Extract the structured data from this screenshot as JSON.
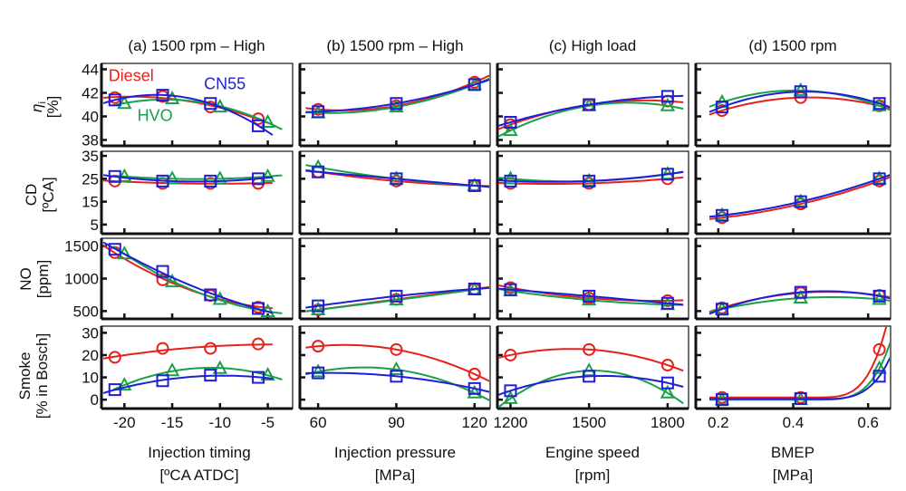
{
  "figure": {
    "legend": [
      {
        "name": "Diesel",
        "color": "#e8201c",
        "marker": "circle"
      },
      {
        "name": "CN55",
        "color": "#1f1fd6",
        "marker": "square"
      },
      {
        "name": "HVO",
        "color": "#1aa04a",
        "marker": "triangle"
      }
    ]
  },
  "chart_data": {
    "type": "line",
    "layout": "4x4 small multiples",
    "columns": [
      {
        "title": "(a) 1500 rpm – High",
        "xlabel": "Injection timing",
        "xunit": "[ºCA ATDC]",
        "xticks": [
          -20,
          -15,
          -10,
          -5
        ],
        "xticklabels": [
          "-20",
          "-15",
          "-10",
          "-5"
        ],
        "xlim": [
          -22.4,
          -2.4
        ]
      },
      {
        "title": "(b) 1500 rpm – High",
        "xlabel": "Injection pressure",
        "xunit": "[MPa]",
        "xticks": [
          60,
          90,
          120
        ],
        "xticklabels": [
          "60",
          "90",
          "120"
        ],
        "xlim": [
          53,
          126
        ]
      },
      {
        "title": "(c) High load",
        "xlabel": "Engine speed",
        "xunit": "[rpm]",
        "xticks": [
          1200,
          1500,
          1800
        ],
        "xticklabels": [
          "1200",
          "1500",
          "1800"
        ],
        "xlim": [
          1150,
          1880
        ]
      },
      {
        "title": "(d) 1500 rpm",
        "xlabel": "BMEP",
        "xunit": "[MPa]",
        "xticks": [
          0.2,
          0.4,
          0.6
        ],
        "xticklabels": [
          "0.2",
          "0.4",
          "0.6"
        ],
        "xlim": [
          0.14,
          0.66
        ]
      }
    ],
    "rows": [
      {
        "ylabel": "ηi",
        "ylabel_main": "η",
        "ylabel_sub": "i",
        "yunit": "[%]",
        "yticks": [
          38,
          40,
          42,
          44
        ],
        "yticklabels": [
          "38",
          "40",
          "42",
          "44"
        ],
        "ylim": [
          37.5,
          44.5
        ]
      },
      {
        "ylabel": "CD",
        "yunit": "[ºCA]",
        "yticks": [
          5,
          15,
          25,
          35
        ],
        "yticklabels": [
          "5",
          "15",
          "25",
          "35"
        ],
        "ylim": [
          1,
          37
        ]
      },
      {
        "ylabel": "NO",
        "yunit": "[ppm]",
        "yticks": [
          500,
          1000,
          1500
        ],
        "yticklabels": [
          "500",
          "1000",
          "1500"
        ],
        "ylim": [
          380,
          1620
        ]
      },
      {
        "ylabel": "Smoke",
        "yunit": "[% in Bosch]",
        "yticks": [
          0,
          10,
          20,
          30
        ],
        "yticklabels": [
          "0",
          "10",
          "20",
          "30"
        ],
        "ylim": [
          -4,
          33
        ]
      }
    ],
    "panels": [
      {
        "row": 0,
        "col": 0,
        "series": [
          {
            "name": "Diesel",
            "x": [
              -21,
              -16,
              -11,
              -6
            ],
            "y": [
              41.6,
              41.7,
              40.8,
              39.8
            ]
          },
          {
            "name": "CN55",
            "x": [
              -21,
              -16,
              -11,
              -6
            ],
            "y": [
              41.4,
              41.8,
              41.1,
              39.2
            ]
          },
          {
            "name": "HVO",
            "x": [
              -20,
              -15,
              -10,
              -5
            ],
            "y": [
              41.1,
              41.5,
              40.8,
              39.5
            ]
          }
        ]
      },
      {
        "row": 0,
        "col": 1,
        "series": [
          {
            "name": "Diesel",
            "x": [
              60,
              90,
              120
            ],
            "y": [
              40.6,
              40.9,
              42.9
            ]
          },
          {
            "name": "CN55",
            "x": [
              60,
              90,
              120
            ],
            "y": [
              40.4,
              41.1,
              42.7
            ]
          },
          {
            "name": "HVO",
            "x": [
              60,
              90,
              120
            ],
            "y": [
              40.3,
              40.8,
              42.7
            ]
          }
        ]
      },
      {
        "row": 0,
        "col": 2,
        "series": [
          {
            "name": "Diesel",
            "x": [
              1200,
              1500,
              1800
            ],
            "y": [
              39.3,
              41.0,
              41.3
            ]
          },
          {
            "name": "CN55",
            "x": [
              1200,
              1500,
              1800
            ],
            "y": [
              39.5,
              41.0,
              41.7
            ]
          },
          {
            "name": "HVO",
            "x": [
              1200,
              1500,
              1800
            ],
            "y": [
              38.8,
              40.9,
              40.9
            ]
          }
        ]
      },
      {
        "row": 0,
        "col": 3,
        "series": [
          {
            "name": "Diesel",
            "x": [
              0.21,
              0.42,
              0.63
            ],
            "y": [
              40.5,
              41.6,
              40.9
            ]
          },
          {
            "name": "CN55",
            "x": [
              0.21,
              0.42,
              0.63
            ],
            "y": [
              40.8,
              42.1,
              41.1
            ]
          },
          {
            "name": "HVO",
            "x": [
              0.21,
              0.42,
              0.63
            ],
            "y": [
              41.2,
              42.2,
              40.9
            ]
          }
        ]
      },
      {
        "row": 1,
        "col": 0,
        "series": [
          {
            "name": "Diesel",
            "x": [
              -21,
              -16,
              -11,
              -6
            ],
            "y": [
              24,
              23,
              23,
              23
            ]
          },
          {
            "name": "CN55",
            "x": [
              -21,
              -16,
              -11,
              -6
            ],
            "y": [
              26,
              24,
              24,
              25
            ]
          },
          {
            "name": "HVO",
            "x": [
              -20,
              -15,
              -10,
              -5
            ],
            "y": [
              26,
              25,
              25,
              26
            ]
          }
        ]
      },
      {
        "row": 1,
        "col": 1,
        "series": [
          {
            "name": "Diesel",
            "x": [
              60,
              90,
              120
            ],
            "y": [
              28,
              24,
              22
            ]
          },
          {
            "name": "CN55",
            "x": [
              60,
              90,
              120
            ],
            "y": [
              28,
              25,
              22
            ]
          },
          {
            "name": "HVO",
            "x": [
              60,
              90,
              120
            ],
            "y": [
              30,
              25,
              22
            ]
          }
        ]
      },
      {
        "row": 1,
        "col": 2,
        "series": [
          {
            "name": "Diesel",
            "x": [
              1200,
              1500,
              1800
            ],
            "y": [
              23,
              23,
              25
            ]
          },
          {
            "name": "CN55",
            "x": [
              1200,
              1500,
              1800
            ],
            "y": [
              24,
              24,
              27
            ]
          },
          {
            "name": "HVO",
            "x": [
              1200,
              1500,
              1800
            ],
            "y": [
              25,
              24,
              27
            ]
          }
        ]
      },
      {
        "row": 1,
        "col": 3,
        "series": [
          {
            "name": "Diesel",
            "x": [
              0.21,
              0.42,
              0.63
            ],
            "y": [
              8,
              14,
              24
            ]
          },
          {
            "name": "CN55",
            "x": [
              0.21,
              0.42,
              0.63
            ],
            "y": [
              9,
              15,
              25
            ]
          },
          {
            "name": "HVO",
            "x": [
              0.21,
              0.42,
              0.63
            ],
            "y": [
              9,
              15,
              25
            ]
          }
        ]
      },
      {
        "row": 2,
        "col": 0,
        "series": [
          {
            "name": "Diesel",
            "x": [
              -21,
              -16,
              -11,
              -6
            ],
            "y": [
              1400,
              980,
              740,
              560
            ]
          },
          {
            "name": "CN55",
            "x": [
              -21,
              -16,
              -11,
              -6
            ],
            "y": [
              1450,
              1110,
              750,
              540
            ]
          },
          {
            "name": "HVO",
            "x": [
              -20,
              -15,
              -10,
              -5
            ],
            "y": [
              1380,
              950,
              680,
              490
            ]
          }
        ]
      },
      {
        "row": 2,
        "col": 1,
        "series": [
          {
            "name": "Diesel",
            "x": [
              60,
              90,
              120
            ],
            "y": [
              520,
              680,
              840
            ]
          },
          {
            "name": "CN55",
            "x": [
              60,
              90,
              120
            ],
            "y": [
              580,
              730,
              840
            ]
          },
          {
            "name": "HVO",
            "x": [
              60,
              90,
              120
            ],
            "y": [
              520,
              670,
              830
            ]
          }
        ]
      },
      {
        "row": 2,
        "col": 2,
        "series": [
          {
            "name": "Diesel",
            "x": [
              1200,
              1500,
              1800
            ],
            "y": [
              860,
              700,
              660
            ]
          },
          {
            "name": "CN55",
            "x": [
              1200,
              1500,
              1800
            ],
            "y": [
              830,
              730,
              620
            ]
          },
          {
            "name": "HVO",
            "x": [
              1200,
              1500,
              1800
            ],
            "y": [
              810,
              670,
              600
            ]
          }
        ]
      },
      {
        "row": 2,
        "col": 3,
        "series": [
          {
            "name": "Diesel",
            "x": [
              0.21,
              0.42,
              0.63
            ],
            "y": [
              550,
              780,
              740
            ]
          },
          {
            "name": "CN55",
            "x": [
              0.21,
              0.42,
              0.63
            ],
            "y": [
              530,
              790,
              730
            ]
          },
          {
            "name": "HVO",
            "x": [
              0.21,
              0.42,
              0.63
            ],
            "y": [
              530,
              700,
              680
            ]
          }
        ]
      },
      {
        "row": 3,
        "col": 0,
        "series": [
          {
            "name": "Diesel",
            "x": [
              -21,
              -16,
              -11,
              -6
            ],
            "y": [
              19,
              23,
              23,
              25
            ]
          },
          {
            "name": "CN55",
            "x": [
              -21,
              -16,
              -11,
              -6
            ],
            "y": [
              4.5,
              8.5,
              11,
              10
            ]
          },
          {
            "name": "HVO",
            "x": [
              -20,
              -15,
              -10,
              -5
            ],
            "y": [
              6.5,
              13,
              14,
              11
            ]
          }
        ]
      },
      {
        "row": 3,
        "col": 1,
        "series": [
          {
            "name": "Diesel",
            "x": [
              60,
              90,
              120
            ],
            "y": [
              24,
              22.5,
              11.5
            ]
          },
          {
            "name": "CN55",
            "x": [
              60,
              90,
              120
            ],
            "y": [
              12,
              10.5,
              5
            ]
          },
          {
            "name": "HVO",
            "x": [
              60,
              90,
              120
            ],
            "y": [
              12.5,
              13.5,
              3
            ]
          }
        ]
      },
      {
        "row": 3,
        "col": 2,
        "series": [
          {
            "name": "Diesel",
            "x": [
              1200,
              1500,
              1800
            ],
            "y": [
              20,
              22.5,
              15.5
            ]
          },
          {
            "name": "CN55",
            "x": [
              1200,
              1500,
              1800
            ],
            "y": [
              4,
              10.5,
              7.5
            ]
          },
          {
            "name": "HVO",
            "x": [
              1200,
              1500,
              1800
            ],
            "y": [
              0.5,
              13,
              3
            ]
          }
        ]
      },
      {
        "row": 3,
        "col": 3,
        "series": [
          {
            "name": "Diesel",
            "x": [
              0.21,
              0.42,
              0.63
            ],
            "y": [
              1,
              1,
              22.5
            ]
          },
          {
            "name": "CN55",
            "x": [
              0.21,
              0.42,
              0.63
            ],
            "y": [
              0,
              0.5,
              10.5
            ]
          },
          {
            "name": "HVO",
            "x": [
              0.21,
              0.42,
              0.63
            ],
            "y": [
              0,
              0,
              14
            ]
          }
        ]
      }
    ],
    "annotations": [
      {
        "panel": [
          0,
          0
        ],
        "text": "Diesel",
        "color": "#e8201c",
        "x": -19.3,
        "y": 43.0
      },
      {
        "panel": [
          0,
          0
        ],
        "text": "CN55",
        "color": "#1f1fd6",
        "x": -9.5,
        "y": 42.3
      },
      {
        "panel": [
          0,
          0
        ],
        "text": "HVO",
        "color": "#1aa04a",
        "x": -16.8,
        "y": 39.6
      }
    ],
    "grid": false
  }
}
